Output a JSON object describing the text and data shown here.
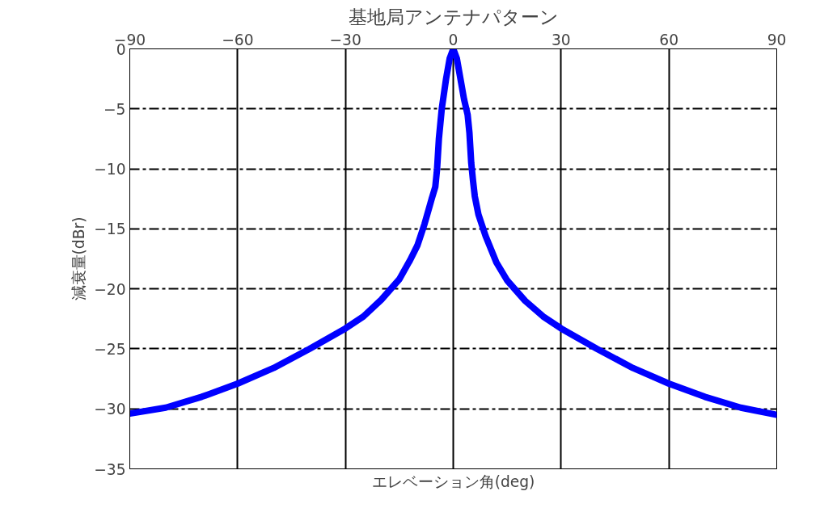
{
  "chart_data": {
    "type": "line",
    "title": "基地局アンテナパターン",
    "xlabel": "エレベーション角(deg)",
    "ylabel": "減衰量(dBr)",
    "x": [
      -90,
      -80,
      -70,
      -60,
      -50,
      -40,
      -30,
      -25,
      -20,
      -15,
      -12,
      -10,
      -8,
      -6,
      -5,
      -4.5,
      -4,
      -3.2,
      -2,
      -1,
      0,
      1,
      2,
      3,
      4,
      4.5,
      5,
      5.5,
      6,
      7,
      9,
      12,
      15,
      20,
      25,
      30,
      40,
      50,
      60,
      70,
      80,
      90
    ],
    "series": [
      {
        "color": "#0000ff",
        "values": [
          -30.4,
          -29.9,
          -29.0,
          -27.9,
          -26.6,
          -25.0,
          -23.3,
          -22.3,
          -20.9,
          -19.2,
          -17.6,
          -16.4,
          -14.6,
          -12.5,
          -11.5,
          -10,
          -7.5,
          -5,
          -2.5,
          -0.8,
          0,
          -0.8,
          -2.5,
          -4.2,
          -5.5,
          -7,
          -9.5,
          -11,
          -12.3,
          -13.8,
          -15.6,
          -17.8,
          -19.3,
          -21.0,
          -22.3,
          -23.3,
          -25.0,
          -26.6,
          -27.9,
          -29.0,
          -29.9,
          -30.5
        ]
      }
    ],
    "xlim": [
      -90,
      90
    ],
    "ylim": [
      -35,
      0
    ],
    "xticks": [
      -90,
      -60,
      -30,
      0,
      30,
      60,
      90
    ],
    "yticks": [
      -35,
      -30,
      -25,
      -20,
      -15,
      -10,
      -5,
      0
    ],
    "grid": true,
    "marker": "none",
    "line_style": "solid"
  }
}
